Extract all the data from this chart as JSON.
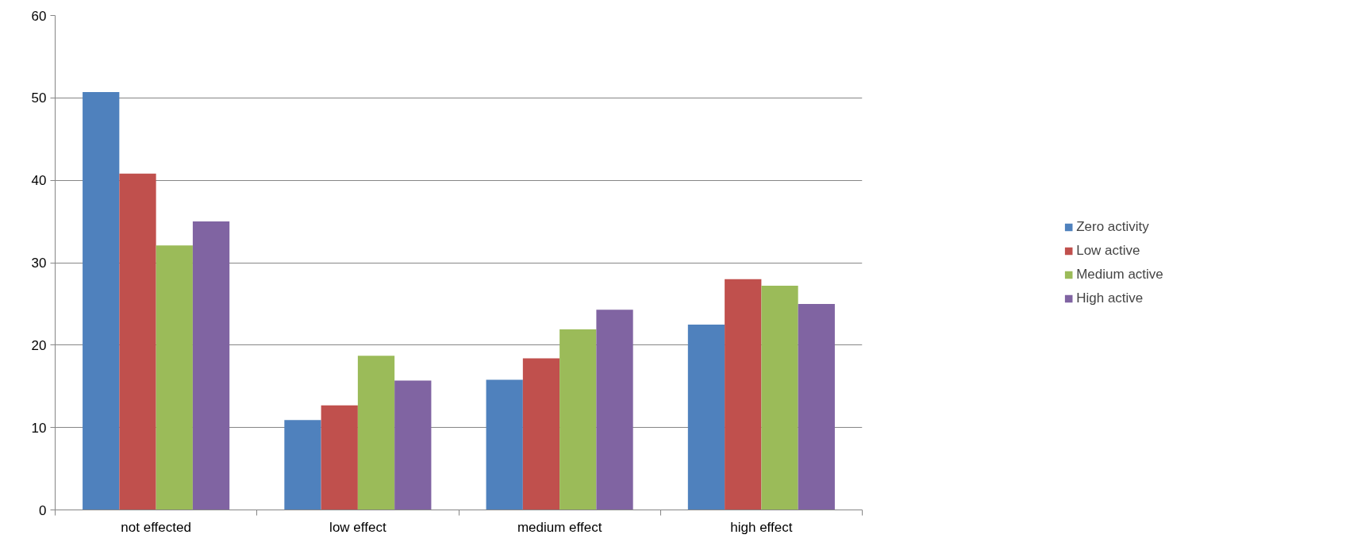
{
  "chart_data": {
    "type": "bar",
    "categories": [
      "not effected",
      "low effect",
      "medium effect",
      "high effect"
    ],
    "series": [
      {
        "name": "Zero activity",
        "color": "#4f81bd",
        "values": [
          50.7,
          10.9,
          15.8,
          22.5
        ]
      },
      {
        "name": "Low active",
        "color": "#c0504d",
        "values": [
          40.8,
          12.7,
          18.4,
          28.0
        ]
      },
      {
        "name": "Medium active",
        "color": "#9bbb59",
        "values": [
          32.1,
          18.7,
          21.9,
          27.2
        ]
      },
      {
        "name": "High active",
        "color": "#8064a2",
        "values": [
          35.0,
          15.7,
          24.3,
          25.0
        ]
      }
    ],
    "ylim": [
      0,
      60
    ],
    "yticks": [
      0,
      10,
      20,
      30,
      40,
      50,
      60
    ],
    "grid": "y",
    "legend": "right"
  }
}
